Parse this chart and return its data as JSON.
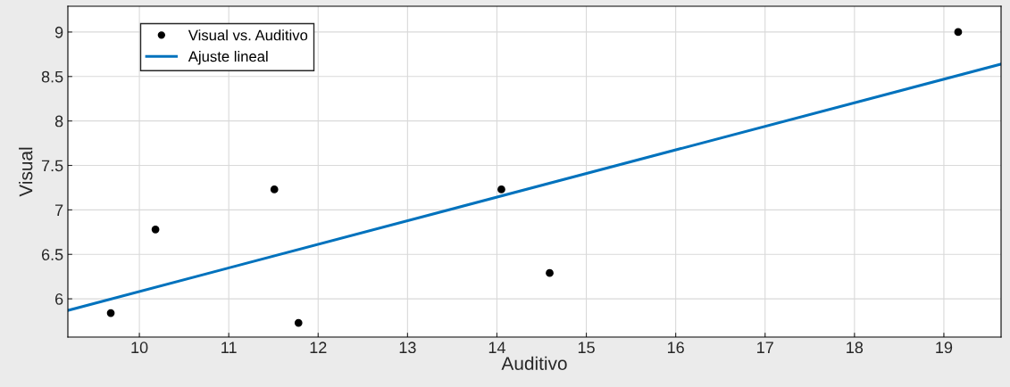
{
  "chart_data": {
    "type": "scatter",
    "xlabel": "Auditivo",
    "ylabel": "Visual",
    "xlim": [
      9.2,
      19.64
    ],
    "ylim": [
      5.57,
      9.29
    ],
    "xticks": [
      10,
      11,
      12,
      13,
      14,
      15,
      16,
      17,
      18,
      19
    ],
    "yticks": [
      6,
      6.5,
      7,
      7.5,
      8,
      8.5,
      9
    ],
    "grid": true,
    "legend": "top left",
    "series": [
      {
        "name": "Visual vs. Auditivo",
        "color": "#000000",
        "marker": "circle",
        "x": [
          9.68,
          10.18,
          11.51,
          11.78,
          14.05,
          14.59,
          19.16
        ],
        "values": [
          5.84,
          6.78,
          7.23,
          5.73,
          7.23,
          6.29,
          9.0
        ]
      },
      {
        "name": "Ajuste lineal",
        "type": "line",
        "color": "#0072bd",
        "marker": "none",
        "line_style": "solid",
        "x": [
          9.2,
          19.64
        ],
        "values": [
          5.87,
          8.64
        ]
      }
    ]
  }
}
